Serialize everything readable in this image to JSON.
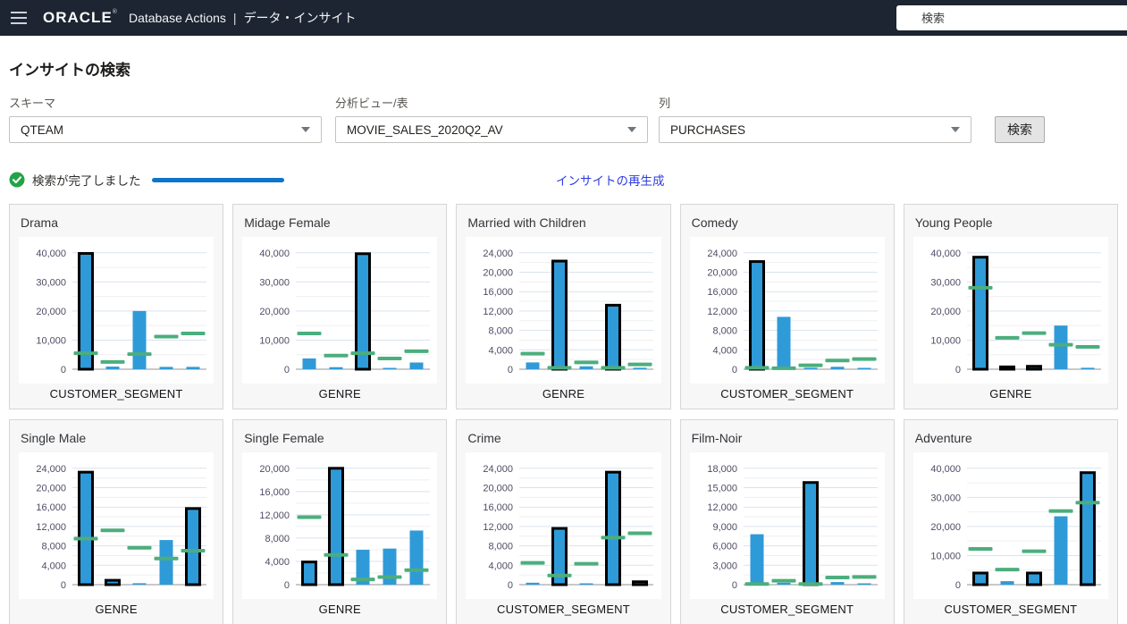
{
  "header": {
    "brand": "ORACLE",
    "brand_mark": "®",
    "app_title": "Database Actions",
    "separator": "|",
    "page_name": "データ・インサイト",
    "search_placeholder": "検索"
  },
  "page": {
    "title": "インサイトの検索",
    "search_button": "検索",
    "status_text": "検索が完了しました",
    "regenerate_link": "インサイトの再生成"
  },
  "filters": {
    "schema": {
      "label": "スキーマ",
      "value": "QTEAM"
    },
    "analytic_view": {
      "label": "分析ビュー/表",
      "value": "MOVIE_SALES_2020Q2_AV"
    },
    "column": {
      "label": "列",
      "value": "PURCHASES"
    }
  },
  "colors": {
    "header_bg": "#1c2531",
    "bar": "#2f9ad8",
    "expected_marker": "#4bae7d",
    "highlight_outline": "#000000",
    "progress": "#0f75c9",
    "link": "#2c3be2",
    "success_green": "#23a348",
    "gridline_major": "#d9e3ee",
    "gridline_minor": "#efefef",
    "tick_label": "#4d4d66"
  },
  "chart_data": [
    {
      "type": "bar",
      "title": "Drama",
      "xlabel": "CUSTOMER_SEGMENT",
      "ylim": [
        0,
        40000
      ],
      "ytick_step": 10000,
      "grid": true,
      "values": [
        39800,
        900,
        20000,
        800,
        800
      ],
      "expected": [
        5500,
        2500,
        5200,
        11200,
        12300
      ],
      "highlighted_indices": [
        0
      ]
    },
    {
      "type": "bar",
      "title": "Midage Female",
      "xlabel": "GENRE",
      "ylim": [
        0,
        40000
      ],
      "ytick_step": 10000,
      "grid": true,
      "values": [
        3700,
        700,
        39700,
        300,
        2300
      ],
      "expected": [
        12300,
        4700,
        5500,
        3700,
        6200
      ],
      "highlighted_indices": [
        2
      ]
    },
    {
      "type": "bar",
      "title": "Married with Children",
      "xlabel": "GENRE",
      "ylim": [
        0,
        24000
      ],
      "ytick_step": 4000,
      "grid": true,
      "values": [
        1400,
        22300,
        600,
        13200,
        300
      ],
      "expected": [
        3200,
        300,
        1400,
        300,
        1000
      ],
      "highlighted_indices": [
        1,
        3
      ]
    },
    {
      "type": "bar",
      "title": "Comedy",
      "xlabel": "CUSTOMER_SEGMENT",
      "ylim": [
        0,
        24000
      ],
      "ytick_step": 4000,
      "grid": true,
      "values": [
        22200,
        10800,
        300,
        500,
        200
      ],
      "expected": [
        300,
        200,
        800,
        1800,
        2100
      ],
      "highlighted_indices": [
        0
      ]
    },
    {
      "type": "bar",
      "title": "Young People",
      "xlabel": "GENRE",
      "ylim": [
        0,
        40000
      ],
      "ytick_step": 10000,
      "grid": true,
      "values": [
        38500,
        800,
        1000,
        15000,
        500
      ],
      "expected": [
        28000,
        10800,
        12400,
        8400,
        7700
      ],
      "highlighted_indices": [
        0,
        1,
        2
      ]
    },
    {
      "type": "bar",
      "title": "Single Male",
      "xlabel": "GENRE",
      "ylim": [
        0,
        24000
      ],
      "ytick_step": 4000,
      "grid": true,
      "values": [
        23200,
        900,
        300,
        9200,
        15700
      ],
      "expected": [
        9500,
        11200,
        7600,
        5400,
        7000
      ],
      "highlighted_indices": [
        0,
        1,
        4
      ]
    },
    {
      "type": "bar",
      "title": "Single Female",
      "xlabel": "GENRE",
      "ylim": [
        0,
        20000
      ],
      "ytick_step": 4000,
      "grid": true,
      "values": [
        3900,
        20000,
        6000,
        6200,
        9300
      ],
      "expected": [
        11600,
        5100,
        900,
        1300,
        2500
      ],
      "highlighted_indices": [
        0,
        1
      ]
    },
    {
      "type": "bar",
      "title": "Crime",
      "xlabel": "CUSTOMER_SEGMENT",
      "ylim": [
        0,
        24000
      ],
      "ytick_step": 4000,
      "grid": true,
      "values": [
        400,
        11600,
        200,
        23200,
        600
      ],
      "expected": [
        4500,
        1900,
        4300,
        9700,
        10600
      ],
      "highlighted_indices": [
        1,
        3,
        4
      ]
    },
    {
      "type": "bar",
      "title": "Film-Noir",
      "xlabel": "CUSTOMER_SEGMENT",
      "ylim": [
        0,
        18000
      ],
      "ytick_step": 3000,
      "grid": true,
      "values": [
        7800,
        300,
        15800,
        400,
        200
      ],
      "expected": [
        100,
        600,
        100,
        1100,
        1200
      ],
      "highlighted_indices": [
        2
      ]
    },
    {
      "type": "bar",
      "title": "Adventure",
      "xlabel": "CUSTOMER_SEGMENT",
      "ylim": [
        0,
        40000
      ],
      "ytick_step": 10000,
      "grid": true,
      "values": [
        4000,
        1200,
        4000,
        23500,
        38500
      ],
      "expected": [
        12300,
        5200,
        11500,
        25300,
        28200
      ],
      "highlighted_indices": [
        0,
        2,
        4
      ]
    }
  ]
}
